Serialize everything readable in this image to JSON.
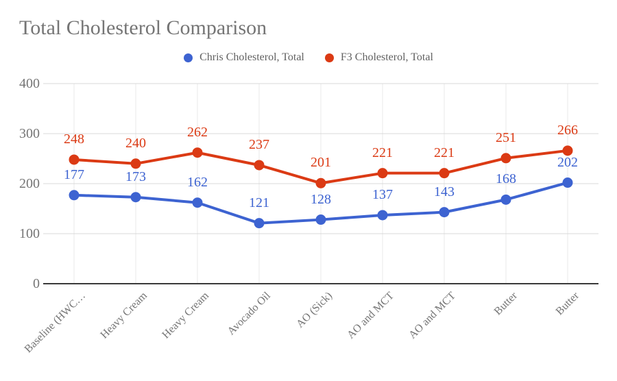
{
  "chart_data": {
    "type": "line",
    "title": "Total Cholesterol Comparison",
    "categories": [
      "Baseline (HWC…",
      "Heavy Cream",
      "Heavy Cream",
      "Avocado Oil",
      "AO (Sick)",
      "AO and MCT",
      "AO and MCT",
      "Butter",
      "Butter"
    ],
    "series": [
      {
        "name": "Chris Cholesterol, Total",
        "color": "#3D63D1",
        "values": [
          177,
          173,
          162,
          121,
          128,
          137,
          143,
          168,
          202
        ]
      },
      {
        "name": "F3 Cholesterol, Total",
        "color": "#DB3A14",
        "values": [
          248,
          240,
          262,
          237,
          201,
          221,
          221,
          251,
          266
        ]
      }
    ],
    "yticks": [
      0,
      100,
      200,
      300,
      400
    ],
    "ylim": [
      0,
      400
    ],
    "xlabel": "",
    "ylabel": "",
    "grid": "horizontal-gridlines-and-light-category-lines",
    "legend_position": "top-center",
    "data_labels": true,
    "marker": "circle"
  },
  "colors": {
    "background": "#ffffff",
    "title_text": "#757575",
    "legend_text": "#616161",
    "tick_text": "#757575",
    "axis_line": "#3a3a3a",
    "gridline": "#d9d9d9",
    "category_line": "#e9e9e9",
    "series_blue": "#3D63D1",
    "series_red": "#DB3A14"
  }
}
